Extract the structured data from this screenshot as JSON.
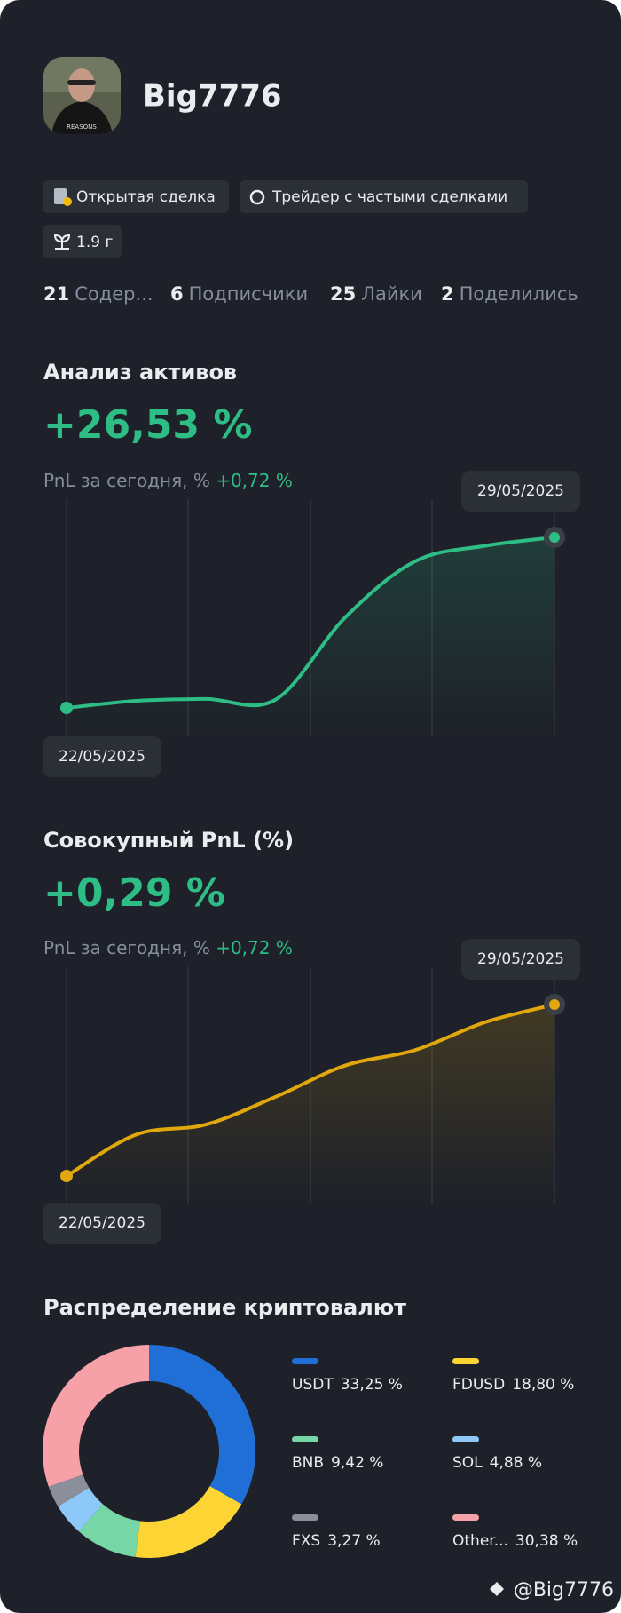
{
  "profile": {
    "name": "Big7776",
    "tags": [
      "Открытая сделка",
      "Трейдер с частыми сделками",
      "1.9 г"
    ],
    "stats": [
      {
        "count": 21,
        "label": "Содер..."
      },
      {
        "count": 6,
        "label": "Подписчики"
      },
      {
        "count": 25,
        "label": "Лайки"
      },
      {
        "count": 2,
        "label": "Поделились"
      }
    ]
  },
  "asset_analysis": {
    "title": "Анализ активов",
    "total": "+26,53 %",
    "today_label": "PnL за сегодня, %",
    "today_value": "+0,72 %",
    "chart_data": {
      "type": "line",
      "categories": [
        "22/05/2025",
        null,
        null,
        null,
        null,
        null,
        null,
        "29/05/2025"
      ],
      "values": [
        0,
        1.1,
        1.4,
        1.3,
        14.1,
        22.8,
        25.2,
        26.53
      ],
      "color": "#2ebd85"
    }
  },
  "cumulative_pnl": {
    "title": "Совокупный PnL (%)",
    "total": "+0,29 %",
    "today_label": "PnL за сегодня, %",
    "today_value": "+0,72 %",
    "chart_data": {
      "type": "line",
      "categories": [
        "22/05/2025",
        null,
        null,
        null,
        null,
        null,
        null,
        "29/05/2025"
      ],
      "values": [
        0,
        0.07,
        0.087,
        0.134,
        0.187,
        0.213,
        0.26,
        0.29
      ],
      "color": "#e0a80d"
    }
  },
  "allocation": {
    "title": "Распределение криптовалют",
    "chart_data": {
      "type": "donut",
      "categories": [
        "USDT",
        "FDUSD",
        "BNB",
        "SOL",
        "FXS",
        "Other..."
      ],
      "values": [
        33.25,
        18.8,
        9.42,
        4.88,
        3.27,
        30.38
      ],
      "value_labels": [
        "33,25 %",
        "18,80 %",
        "9,42 %",
        "4,88 %",
        "3,27 %",
        "30,38 %"
      ],
      "colors": [
        "#1f6fd6",
        "#fcd535",
        "#76d6a6",
        "#8ec8f8",
        "#8a8f99",
        "#f6a0a8"
      ]
    }
  },
  "watermark": "@Big7776"
}
